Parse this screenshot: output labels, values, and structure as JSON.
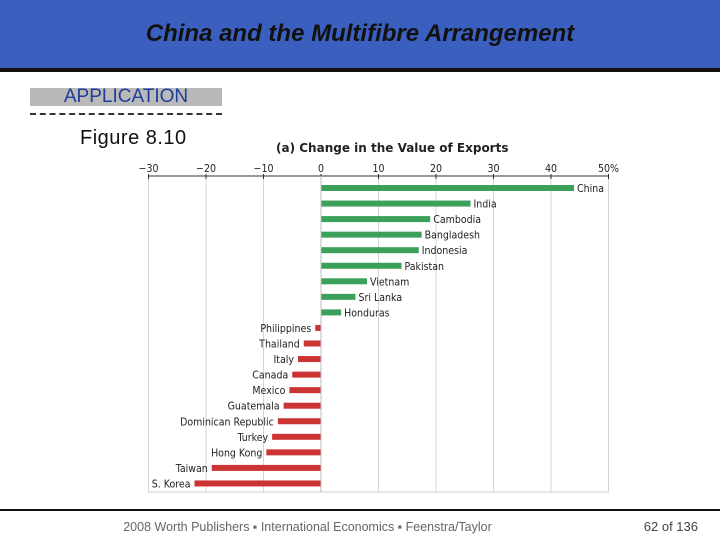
{
  "slide": {
    "title": "China and the Multifibre Arrangement",
    "section_label": "APPLICATION",
    "figure_label": "Figure  8.10",
    "footer": "2008 Worth Publishers ▪ International Economics ▪ Feenstra/Taylor",
    "page_number": "62 of 136"
  },
  "colors": {
    "title_bar": "#3a5fbf",
    "positive": "#3aa05a",
    "negative": "#cc3333"
  },
  "chart_data": {
    "type": "bar",
    "orientation": "horizontal",
    "title": "(a) Change in the Value of Exports",
    "x_ticks": [
      "−30",
      "−20",
      "−10",
      "0",
      "10",
      "20",
      "30",
      "40",
      "50%"
    ],
    "xlim": [
      -30,
      50
    ],
    "grid": true,
    "categories": [
      "China",
      "India",
      "Cambodia",
      "Bangladesh",
      "Indonesia",
      "Pakistan",
      "Vietnam",
      "Sri Lanka",
      "Honduras",
      "Philippines",
      "Thailand",
      "Italy",
      "Canada",
      "Mexico",
      "Guatemala",
      "Dominican Republic",
      "Turkey",
      "Hong Kong",
      "Taiwan",
      "S. Korea"
    ],
    "values": [
      44,
      26,
      19,
      17.5,
      17,
      14,
      8,
      6,
      3.5,
      -1,
      -3,
      -4,
      -5,
      -5.5,
      -6.5,
      -7.5,
      -8.5,
      -9.5,
      -19,
      -22
    ]
  }
}
